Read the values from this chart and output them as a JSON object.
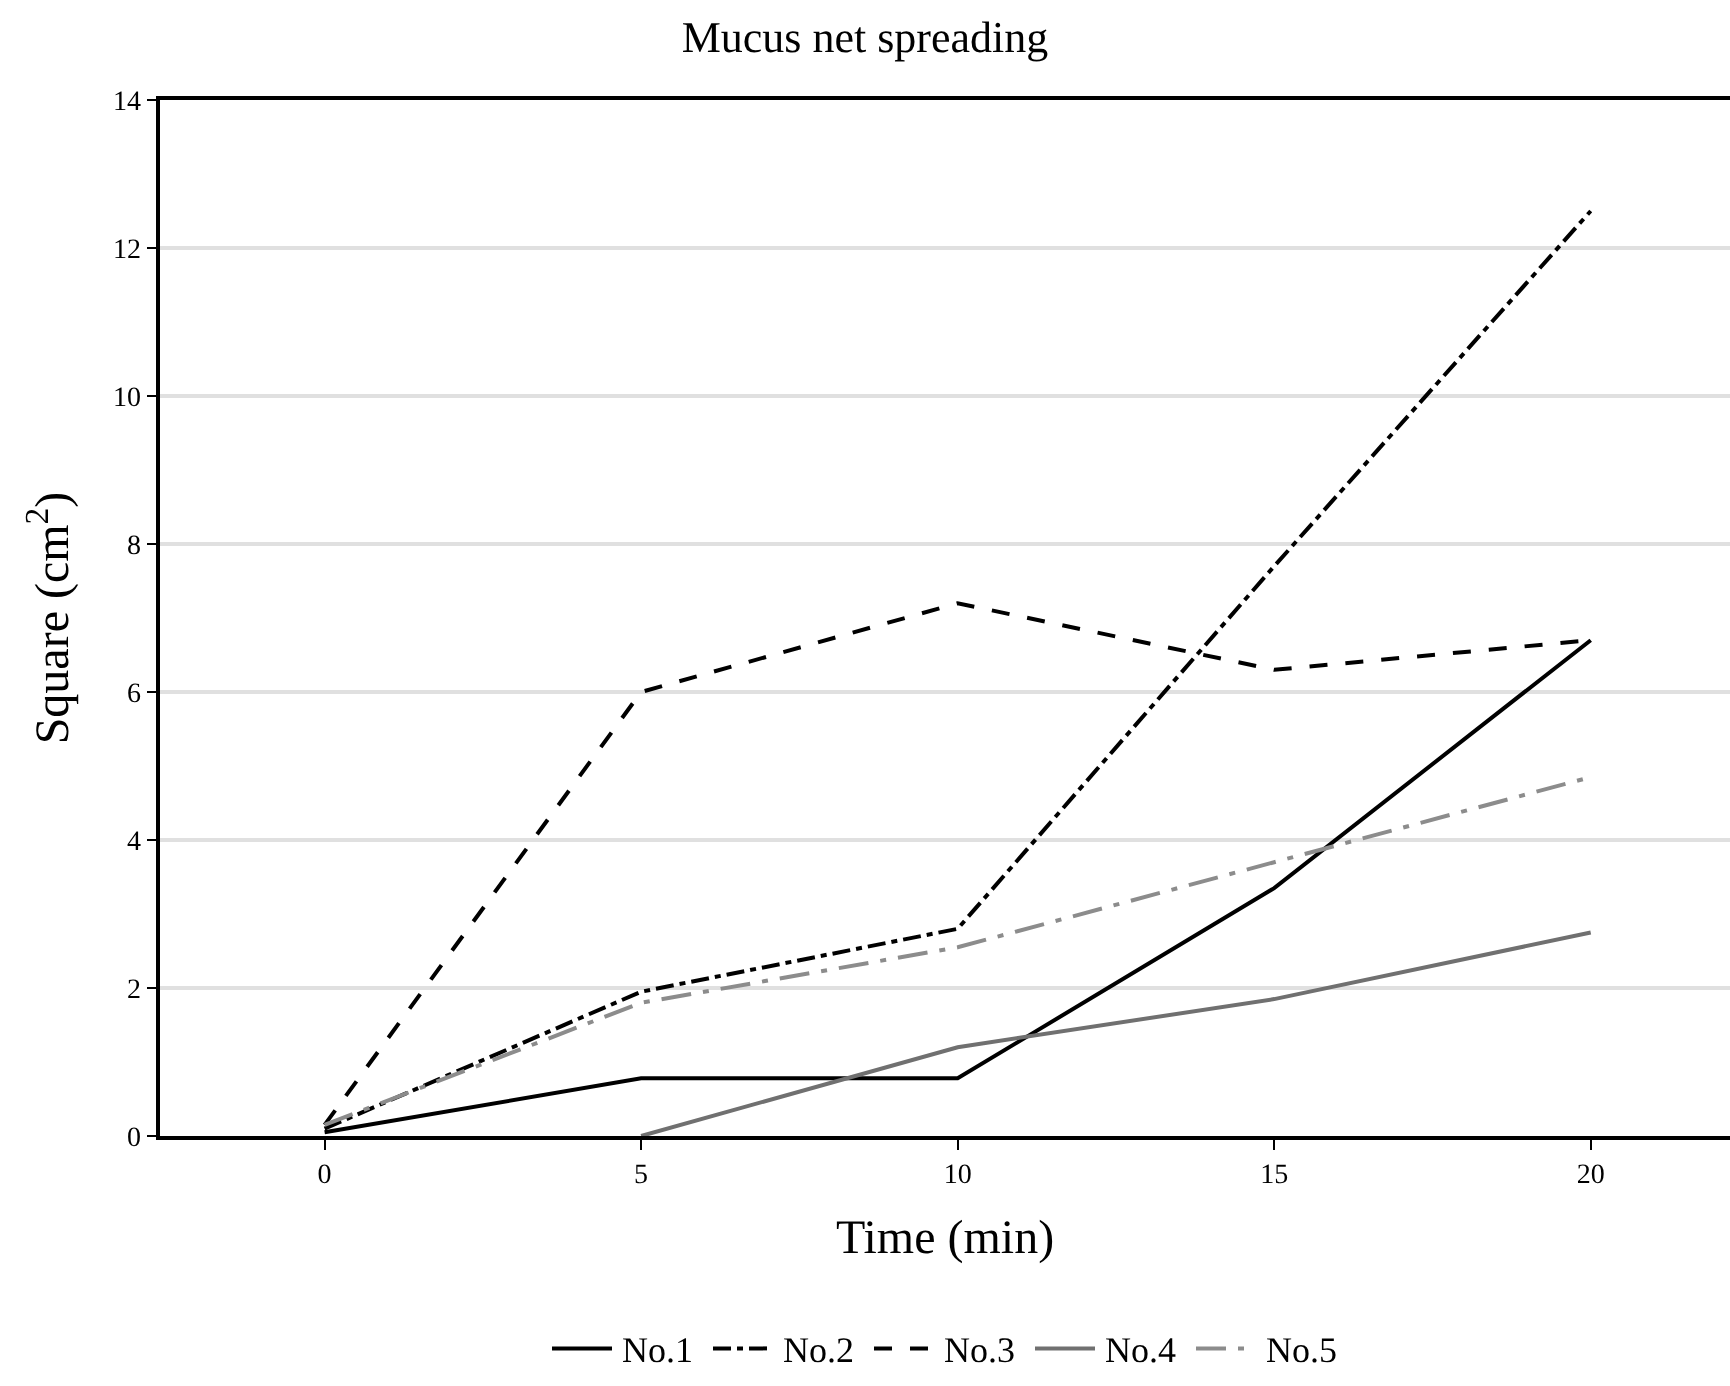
{
  "chart_data": {
    "type": "line",
    "title": "Mucus net spreading",
    "xlabel": "Time (min)",
    "ylabel": "Square (cm$^{2}$)",
    "x": [
      0,
      5,
      10,
      15,
      20
    ],
    "series": [
      {
        "name": "No.1",
        "color": "#000000",
        "line_style": "solid",
        "values": [
          0.05,
          0.78,
          0.78,
          3.35,
          6.7
        ]
      },
      {
        "name": "No.2",
        "color": "#000000",
        "line_style": "dashdot",
        "values": [
          0.1,
          1.95,
          2.8,
          7.7,
          12.5
        ]
      },
      {
        "name": "No.3",
        "color": "#000000",
        "line_style": "dashed",
        "values": [
          0.15,
          6.0,
          7.2,
          6.3,
          6.7
        ]
      },
      {
        "name": "No.4",
        "color": "#707070",
        "line_style": "solid",
        "values": [
          null,
          0,
          1.2,
          1.85,
          2.75
        ]
      },
      {
        "name": "No.5",
        "color": "#8c8c8c",
        "line_style": "longdashdot",
        "values": [
          0.15,
          1.8,
          2.55,
          3.7,
          4.85
        ]
      }
    ],
    "xlim": [
      -2.6,
      22.2
    ],
    "xticks": [
      0,
      5,
      10,
      15,
      20
    ],
    "ylim": [
      0,
      14
    ],
    "yticks": [
      0,
      2,
      4,
      6,
      8,
      10,
      12,
      14
    ],
    "grid": "y",
    "legend": "bottom",
    "marker": "none"
  }
}
